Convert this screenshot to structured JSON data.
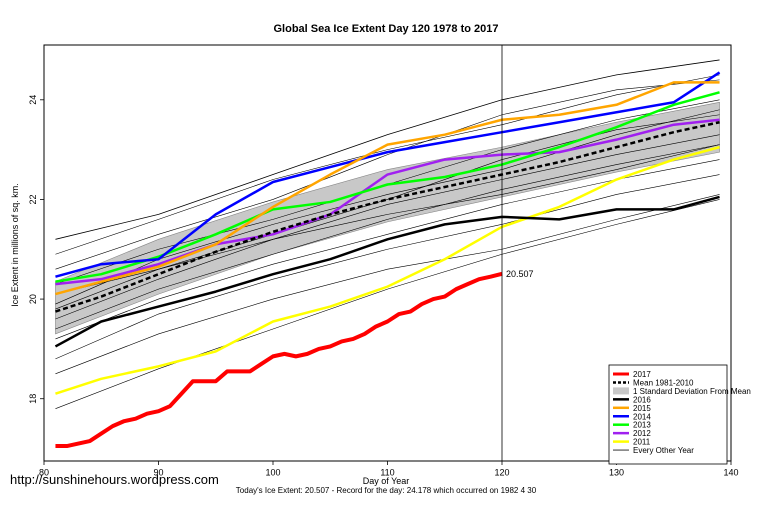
{
  "chart_data": {
    "type": "line",
    "title": "Global Sea Ice Extent Day 120 1978 to 2017",
    "xlabel": "Day of Year",
    "ylabel": "Ice Extent in millions of sq. km.",
    "xlim": [
      80,
      140
    ],
    "ylim": [
      16.75,
      25.1
    ],
    "x_ticks": [
      80,
      90,
      100,
      110,
      120,
      130,
      140
    ],
    "y_ticks": [
      18,
      20,
      22,
      24
    ],
    "grid": false,
    "legend_position": "bottom-right",
    "vline_x": 120,
    "annotation": {
      "x": 120,
      "y": 20.507,
      "text": "20.507",
      "color": "#ff0000"
    },
    "band": {
      "name": "1 Standard Deviation From Mean",
      "x": [
        81,
        90,
        100,
        110,
        120,
        130,
        139
      ],
      "lower": [
        19.3,
        20.1,
        20.9,
        21.55,
        22.05,
        22.55,
        22.95
      ],
      "upper": [
        20.35,
        21.2,
        21.95,
        22.6,
        23.05,
        23.55,
        23.95
      ]
    },
    "series": [
      {
        "name": "2017",
        "color": "#ff0000",
        "width": 4,
        "dash": "",
        "x": [
          81,
          82,
          83,
          84,
          85,
          86,
          87,
          88,
          89,
          90,
          91,
          92,
          93,
          94,
          95,
          96,
          97,
          98,
          99,
          100,
          101,
          102,
          103,
          104,
          105,
          106,
          107,
          108,
          109,
          110,
          111,
          112,
          113,
          114,
          115,
          116,
          117,
          118,
          119,
          120
        ],
        "y": [
          17.05,
          17.05,
          17.1,
          17.15,
          17.3,
          17.45,
          17.55,
          17.6,
          17.7,
          17.75,
          17.85,
          18.1,
          18.35,
          18.35,
          18.35,
          18.55,
          18.55,
          18.55,
          18.7,
          18.85,
          18.9,
          18.85,
          18.9,
          19.0,
          19.05,
          19.15,
          19.2,
          19.3,
          19.45,
          19.55,
          19.7,
          19.75,
          19.9,
          20.0,
          20.05,
          20.2,
          20.3,
          20.4,
          20.45,
          20.507
        ]
      },
      {
        "name": "Mean 1981-2010",
        "color": "#000000",
        "width": 2.5,
        "dash": "5,3",
        "x": [
          81,
          85,
          90,
          95,
          100,
          105,
          110,
          115,
          120,
          125,
          130,
          135,
          139
        ],
        "y": [
          19.75,
          20.05,
          20.5,
          20.95,
          21.35,
          21.7,
          22.0,
          22.25,
          22.5,
          22.75,
          23.05,
          23.35,
          23.55
        ]
      },
      {
        "name": "2016",
        "color": "#000000",
        "width": 2.5,
        "dash": "",
        "x": [
          81,
          85,
          90,
          95,
          100,
          105,
          110,
          115,
          120,
          125,
          130,
          135,
          139
        ],
        "y": [
          19.05,
          19.55,
          19.85,
          20.15,
          20.5,
          20.8,
          21.2,
          21.5,
          21.65,
          21.6,
          21.8,
          21.8,
          22.05
        ]
      },
      {
        "name": "2015",
        "color": "#ffa500",
        "width": 2.5,
        "dash": "",
        "x": [
          81,
          85,
          90,
          95,
          100,
          105,
          110,
          115,
          120,
          125,
          130,
          135,
          139
        ],
        "y": [
          20.1,
          20.35,
          20.65,
          21.1,
          21.85,
          22.5,
          23.1,
          23.3,
          23.6,
          23.7,
          23.9,
          24.35,
          24.35
        ]
      },
      {
        "name": "2014",
        "color": "#0000ff",
        "width": 2.5,
        "dash": "",
        "x": [
          81,
          85,
          90,
          95,
          100,
          105,
          110,
          115,
          120,
          125,
          130,
          135,
          139
        ],
        "y": [
          20.45,
          20.7,
          20.8,
          21.7,
          22.35,
          22.65,
          22.95,
          23.15,
          23.35,
          23.55,
          23.75,
          23.95,
          24.55
        ]
      },
      {
        "name": "2013",
        "color": "#00ff00",
        "width": 2.5,
        "dash": "",
        "x": [
          81,
          85,
          90,
          95,
          100,
          105,
          110,
          115,
          120,
          125,
          130,
          135,
          139
        ],
        "y": [
          20.35,
          20.5,
          20.85,
          21.3,
          21.8,
          21.95,
          22.3,
          22.45,
          22.7,
          23.05,
          23.45,
          23.9,
          24.15
        ]
      },
      {
        "name": "2012",
        "color": "#a020f0",
        "width": 2.5,
        "dash": "",
        "x": [
          81,
          85,
          90,
          95,
          100,
          105,
          110,
          115,
          120,
          125,
          130,
          135,
          139
        ],
        "y": [
          20.3,
          20.4,
          20.7,
          21.1,
          21.3,
          21.7,
          22.5,
          22.8,
          22.9,
          22.95,
          23.2,
          23.5,
          23.6
        ]
      },
      {
        "name": "2011",
        "color": "#ffff00",
        "width": 2.5,
        "dash": "",
        "x": [
          81,
          85,
          90,
          95,
          100,
          105,
          110,
          115,
          120,
          125,
          130,
          135,
          139
        ],
        "y": [
          18.1,
          18.4,
          18.65,
          18.95,
          19.55,
          19.85,
          20.25,
          20.8,
          21.45,
          21.85,
          22.4,
          22.8,
          23.05
        ]
      },
      {
        "name": "Every Other Year",
        "color": "#000000",
        "width": 0.8,
        "dash": "",
        "x": [
          81,
          90,
          100,
          110,
          120,
          130,
          139
        ],
        "y": [
          21.2,
          21.7,
          22.5,
          23.3,
          24.0,
          24.5,
          24.8
        ]
      }
    ],
    "other_years": [
      {
        "x": [
          81,
          90,
          100,
          110,
          120,
          130,
          139
        ],
        "y": [
          20.6,
          21.3,
          22.0,
          22.9,
          23.7,
          24.2,
          24.4
        ]
      },
      {
        "x": [
          81,
          90,
          100,
          110,
          120,
          130,
          139
        ],
        "y": [
          20.9,
          21.6,
          22.4,
          23.0,
          23.5,
          24.1,
          24.5
        ]
      },
      {
        "x": [
          81,
          90,
          100,
          110,
          120,
          130,
          139
        ],
        "y": [
          20.3,
          21.0,
          21.6,
          22.3,
          23.0,
          23.6,
          24.0
        ]
      },
      {
        "x": [
          81,
          90,
          100,
          110,
          120,
          130,
          139
        ],
        "y": [
          19.9,
          20.8,
          21.5,
          22.1,
          22.6,
          23.3,
          23.8
        ]
      },
      {
        "x": [
          81,
          90,
          100,
          110,
          120,
          130,
          139
        ],
        "y": [
          19.6,
          20.4,
          21.2,
          21.9,
          22.4,
          22.9,
          23.3
        ]
      },
      {
        "x": [
          81,
          90,
          100,
          110,
          120,
          130,
          139
        ],
        "y": [
          19.4,
          20.2,
          20.9,
          21.6,
          22.2,
          22.7,
          23.1
        ]
      },
      {
        "x": [
          81,
          90,
          100,
          110,
          120,
          130,
          139
        ],
        "y": [
          19.2,
          20.0,
          20.7,
          21.3,
          21.9,
          22.4,
          22.8
        ]
      },
      {
        "x": [
          81,
          90,
          100,
          110,
          120,
          130,
          139
        ],
        "y": [
          18.8,
          19.7,
          20.4,
          21.0,
          21.5,
          22.1,
          22.5
        ]
      },
      {
        "x": [
          81,
          90,
          100,
          110,
          120,
          130,
          139
        ],
        "y": [
          18.5,
          19.3,
          20.0,
          20.6,
          21.0,
          21.6,
          22.1
        ]
      },
      {
        "x": [
          81,
          90,
          100,
          110,
          120,
          130,
          139
        ],
        "y": [
          17.8,
          18.6,
          19.4,
          20.2,
          20.9,
          21.5,
          22.0
        ]
      },
      {
        "x": [
          81,
          90,
          100,
          110,
          120,
          130,
          139
        ],
        "y": [
          20.1,
          20.6,
          21.2,
          21.7,
          22.1,
          22.6,
          23.1
        ]
      },
      {
        "x": [
          81,
          90,
          100,
          110,
          120,
          130,
          139
        ],
        "y": [
          19.8,
          20.6,
          21.3,
          22.0,
          22.8,
          23.4,
          23.7
        ]
      }
    ]
  },
  "watermark": "http://sunshinehours.wordpress.com",
  "footer": "Today's Ice Extent: 20.507  - Record for the day: 24.178 which occurred on 1982 4 30"
}
